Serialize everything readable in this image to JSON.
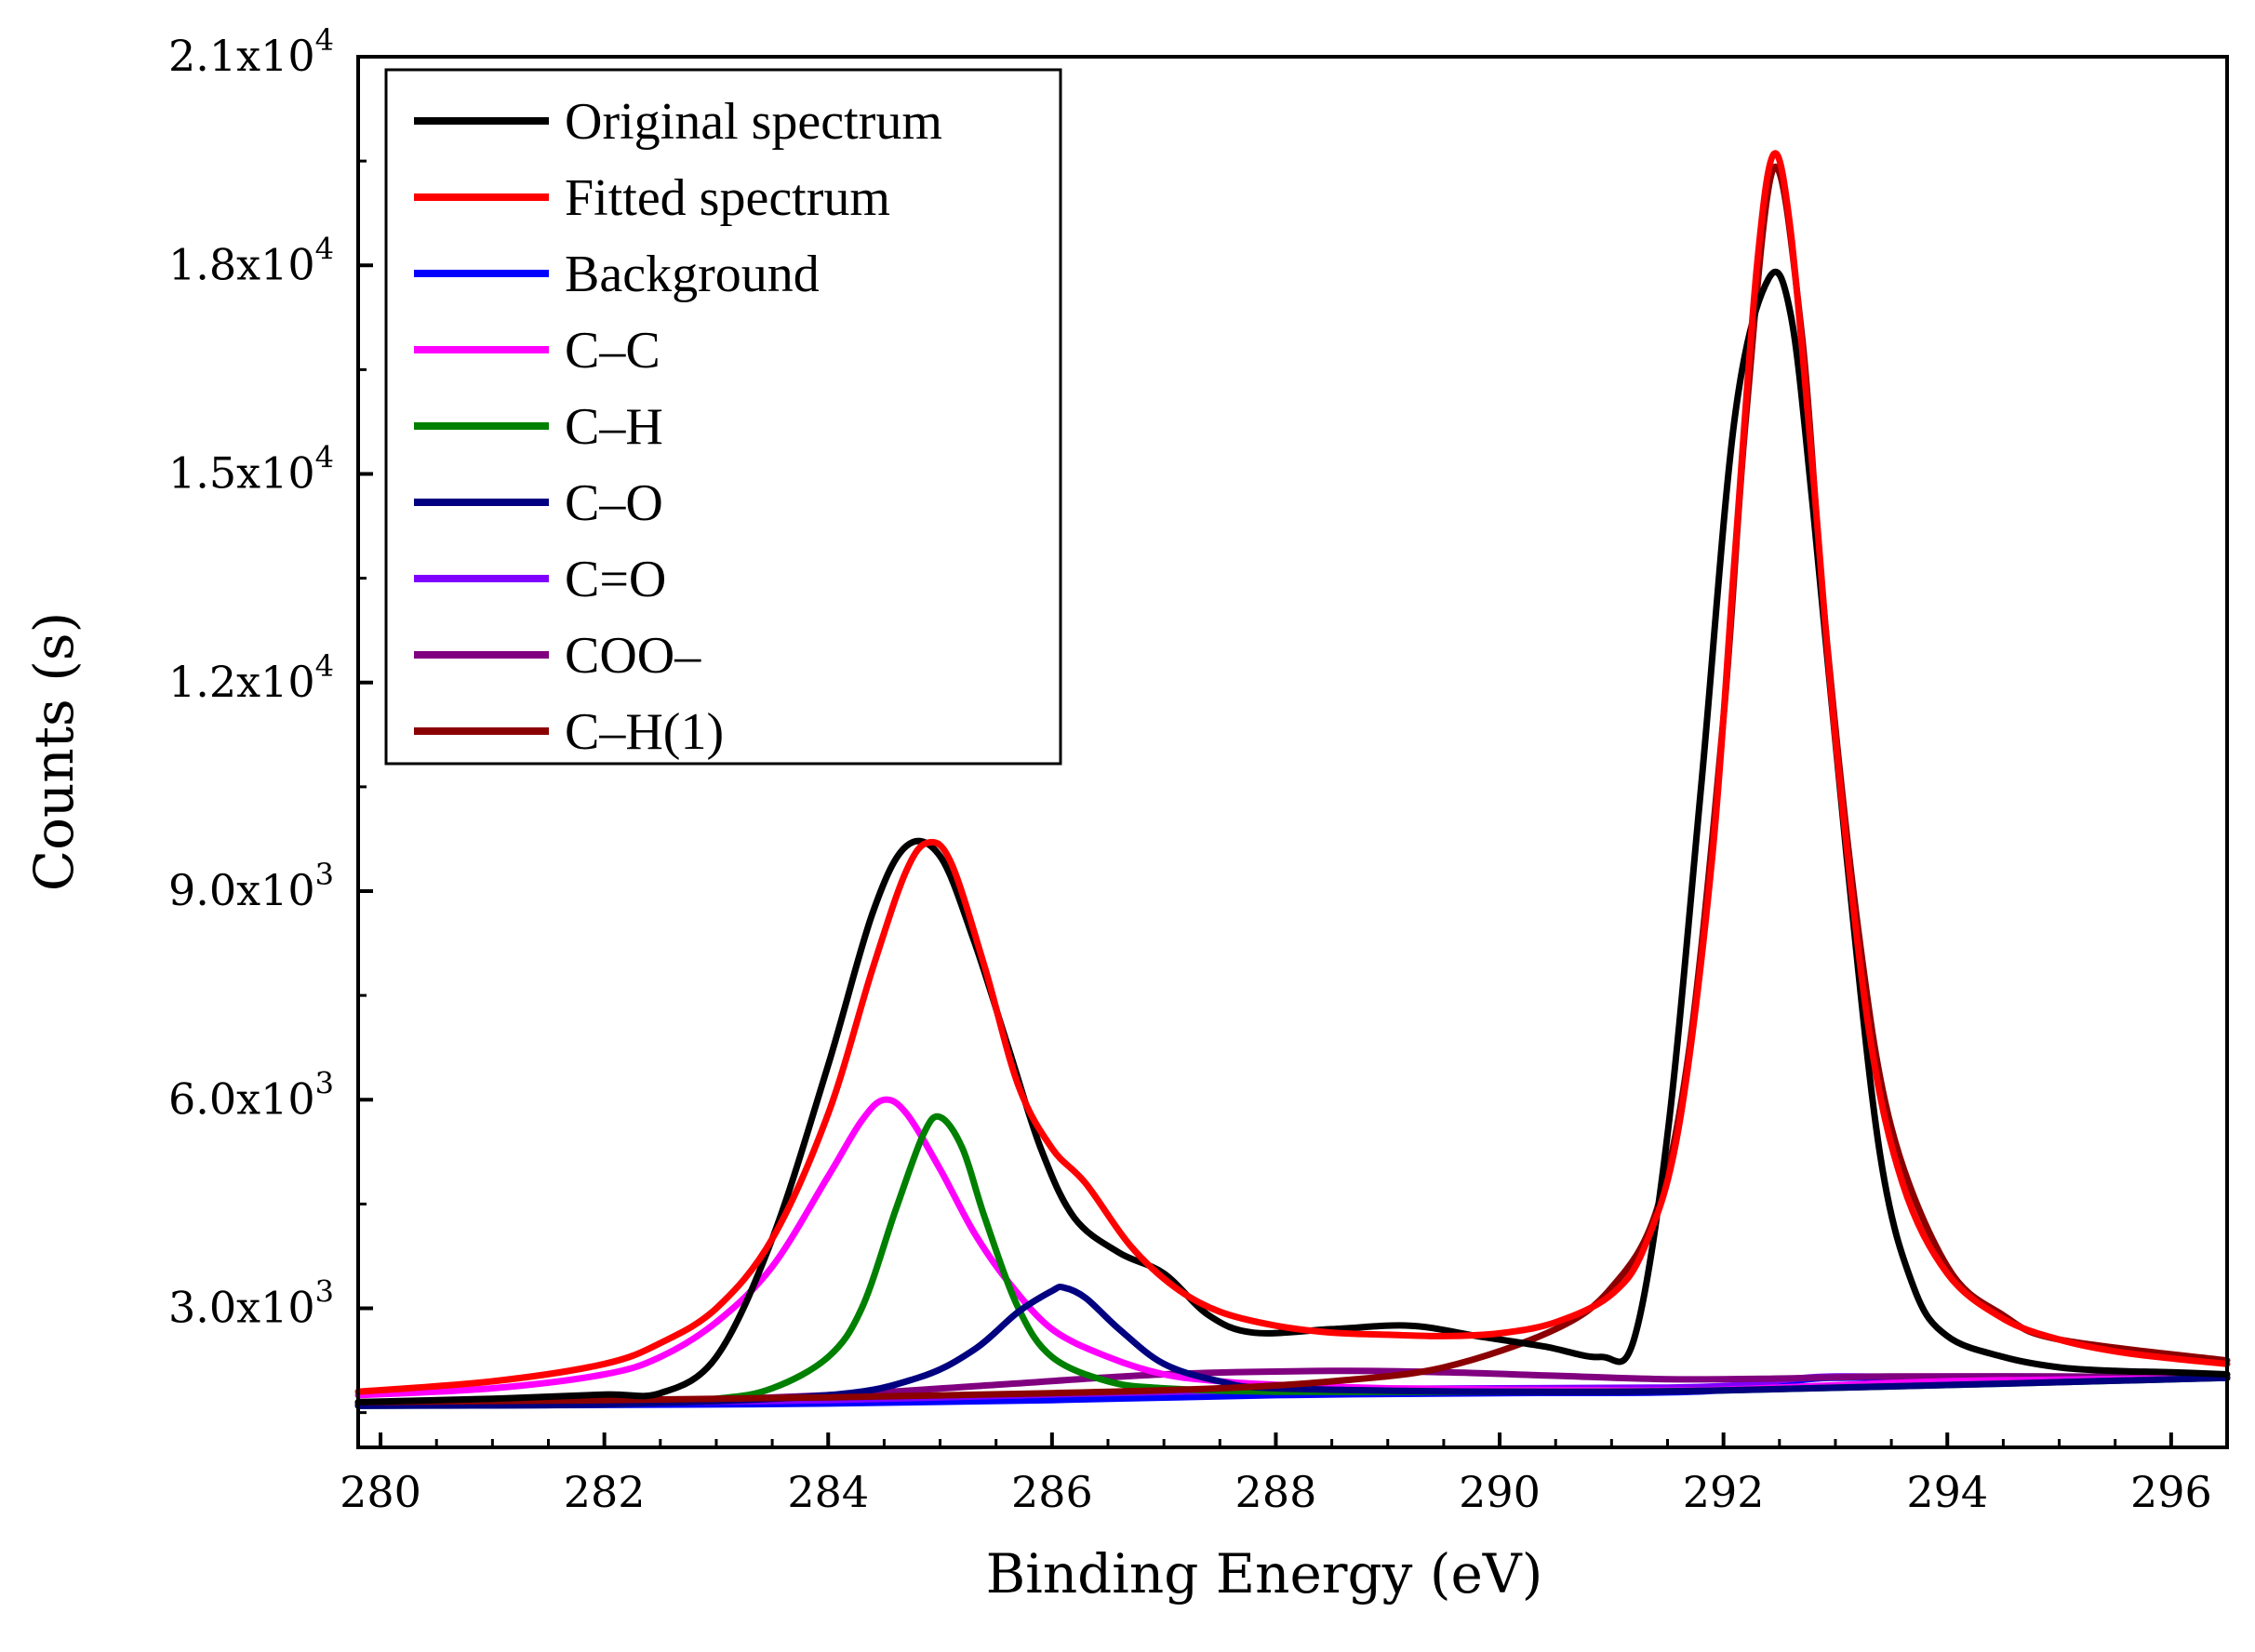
{
  "chart_data": {
    "type": "line",
    "xlabel": "Binding Energy (eV)",
    "ylabel": "Counts (s)",
    "xlim": [
      279.8,
      296.5
    ],
    "ylim": [
      1000,
      21000
    ],
    "xticks": [
      280,
      282,
      284,
      286,
      288,
      290,
      292,
      294,
      296
    ],
    "xtick_labels": [
      "280",
      "282",
      "284",
      "286",
      "288",
      "290",
      "292",
      "294",
      "296"
    ],
    "yticks": [
      3000,
      6000,
      9000,
      12000,
      15000,
      18000,
      21000
    ],
    "ytick_labels": [
      {
        "mantissa": "3.0x10",
        "exp": "3"
      },
      {
        "mantissa": "6.0x10",
        "exp": "3"
      },
      {
        "mantissa": "9.0x10",
        "exp": "3"
      },
      {
        "mantissa": "1.2x10",
        "exp": "4"
      },
      {
        "mantissa": "1.5x10",
        "exp": "4"
      },
      {
        "mantissa": "1.8x10",
        "exp": "4"
      },
      {
        "mantissa": "2.1x10",
        "exp": "4"
      }
    ],
    "grid": false,
    "legend_position": "top-left",
    "series": [
      {
        "name": "Original spectrum",
        "color": "#000000",
        "x": [
          279.8,
          281.0,
          282.0,
          282.5,
          283.0,
          283.5,
          284.0,
          284.4,
          284.7,
          285.0,
          285.3,
          285.6,
          285.9,
          286.2,
          286.6,
          287.0,
          287.4,
          287.8,
          288.5,
          289.2,
          289.8,
          290.4,
          290.9,
          291.2,
          291.5,
          291.8,
          292.1,
          292.4,
          292.6,
          292.8,
          293.1,
          293.4,
          293.7,
          294.0,
          294.5,
          295.0,
          295.5,
          296.0,
          296.5
        ],
        "y": [
          1650,
          1700,
          1760,
          1780,
          2300,
          4000,
          6500,
          8700,
          9650,
          9500,
          8300,
          6800,
          5300,
          4300,
          3800,
          3500,
          2900,
          2650,
          2700,
          2750,
          2600,
          2450,
          2300,
          2550,
          5500,
          10500,
          15800,
          17800,
          17300,
          14500,
          9500,
          5200,
          3300,
          2600,
          2300,
          2150,
          2100,
          2080,
          2050
        ]
      },
      {
        "name": "Fitted spectrum",
        "color": "#ff0000",
        "x": [
          279.8,
          281.0,
          282.0,
          282.5,
          283.0,
          283.5,
          284.0,
          284.4,
          284.7,
          284.9,
          285.1,
          285.4,
          285.7,
          286.0,
          286.3,
          286.7,
          287.1,
          287.5,
          288.0,
          288.5,
          289.0,
          289.5,
          290.0,
          290.5,
          291.0,
          291.3,
          291.6,
          291.9,
          292.1,
          292.3,
          292.45,
          292.6,
          292.8,
          293.0,
          293.3,
          293.6,
          294.0,
          294.5,
          295.0,
          295.5,
          296.0,
          296.5
        ],
        "y": [
          1800,
          1950,
          2200,
          2500,
          3000,
          4000,
          5800,
          7900,
          9300,
          9700,
          9400,
          7900,
          6200,
          5300,
          4800,
          3900,
          3300,
          2950,
          2750,
          2650,
          2620,
          2600,
          2640,
          2800,
          3200,
          3900,
          5600,
          9500,
          13800,
          18000,
          19600,
          18500,
          15000,
          11200,
          7000,
          4800,
          3500,
          2850,
          2550,
          2380,
          2280,
          2200
        ]
      },
      {
        "name": "Background",
        "color": "#0000ff",
        "x": [
          279.8,
          282.0,
          284.0,
          286.0,
          288.0,
          290.0,
          291.5,
          292.2,
          292.6,
          293.0,
          294.0,
          296.5
        ],
        "y": [
          1600,
          1610,
          1630,
          1680,
          1750,
          1780,
          1790,
          1850,
          1950,
          2000,
          2000,
          2000
        ]
      },
      {
        "name": "C–C",
        "color": "#ff00ff",
        "x": [
          279.8,
          281.0,
          282.0,
          282.5,
          283.0,
          283.5,
          284.0,
          284.3,
          284.5,
          284.7,
          285.0,
          285.3,
          285.6,
          286.0,
          286.5,
          287.0,
          287.5,
          288.0,
          289.0,
          290.0,
          291.0,
          292.0,
          294.0,
          296.5
        ],
        "y": [
          1750,
          1850,
          2050,
          2300,
          2800,
          3600,
          4900,
          5700,
          6000,
          5800,
          5000,
          4100,
          3400,
          2700,
          2300,
          2050,
          1950,
          1900,
          1850,
          1830,
          1820,
          1830,
          1950,
          2000
        ]
      },
      {
        "name": "C–H",
        "color": "#008000",
        "x": [
          279.8,
          282.0,
          283.0,
          283.5,
          284.0,
          284.3,
          284.6,
          284.85,
          285.0,
          285.2,
          285.4,
          285.7,
          286.0,
          286.5,
          287.0,
          288.0,
          290.0,
          292.0,
          296.5
        ],
        "y": [
          1600,
          1620,
          1700,
          1850,
          2300,
          3000,
          4400,
          5500,
          5750,
          5300,
          4300,
          3000,
          2300,
          1950,
          1850,
          1800,
          1800,
          1820,
          2000
        ]
      },
      {
        "name": "C–O",
        "color": "#000080",
        "x": [
          279.8,
          282.0,
          284.0,
          284.8,
          285.3,
          285.7,
          286.0,
          286.1,
          286.3,
          286.6,
          287.0,
          287.5,
          288.0,
          290.0,
          292.0,
          296.5
        ],
        "y": [
          1600,
          1620,
          1750,
          2000,
          2400,
          2950,
          3250,
          3300,
          3150,
          2700,
          2200,
          1950,
          1850,
          1800,
          1820,
          2000
        ]
      },
      {
        "name": "C=O",
        "color": "#8000ff",
        "x": [
          279.8,
          282.0,
          284.0,
          286.0,
          288.0,
          290.0,
          291.5,
          292.2,
          292.6,
          293.0,
          294.0,
          296.5
        ],
        "y": [
          1620,
          1640,
          1680,
          1760,
          1830,
          1850,
          1860,
          1900,
          1980,
          2020,
          2010,
          2000
        ]
      },
      {
        "name": "COO–",
        "color": "#800080",
        "x": [
          279.8,
          282.0,
          284.0,
          285.5,
          287.0,
          288.5,
          289.5,
          290.5,
          291.5,
          292.5,
          293.5,
          295.0,
          296.5
        ],
        "y": [
          1620,
          1650,
          1750,
          1900,
          2050,
          2100,
          2080,
          2030,
          1980,
          1990,
          2020,
          2020,
          2000
        ]
      },
      {
        "name": "C–H(1)",
        "color": "#8b0000",
        "x": [
          279.8,
          282.0,
          284.0,
          286.0,
          287.5,
          288.5,
          289.5,
          290.5,
          291.0,
          291.4,
          291.7,
          292.0,
          292.2,
          292.45,
          292.7,
          292.9,
          293.2,
          293.5,
          294.0,
          294.5,
          295.0,
          296.5
        ],
        "y": [
          1650,
          1680,
          1720,
          1780,
          1850,
          1950,
          2150,
          2700,
          3300,
          4400,
          6800,
          11500,
          15800,
          19400,
          17000,
          13000,
          8500,
          5600,
          3600,
          2900,
          2550,
          2250
        ]
      }
    ]
  }
}
